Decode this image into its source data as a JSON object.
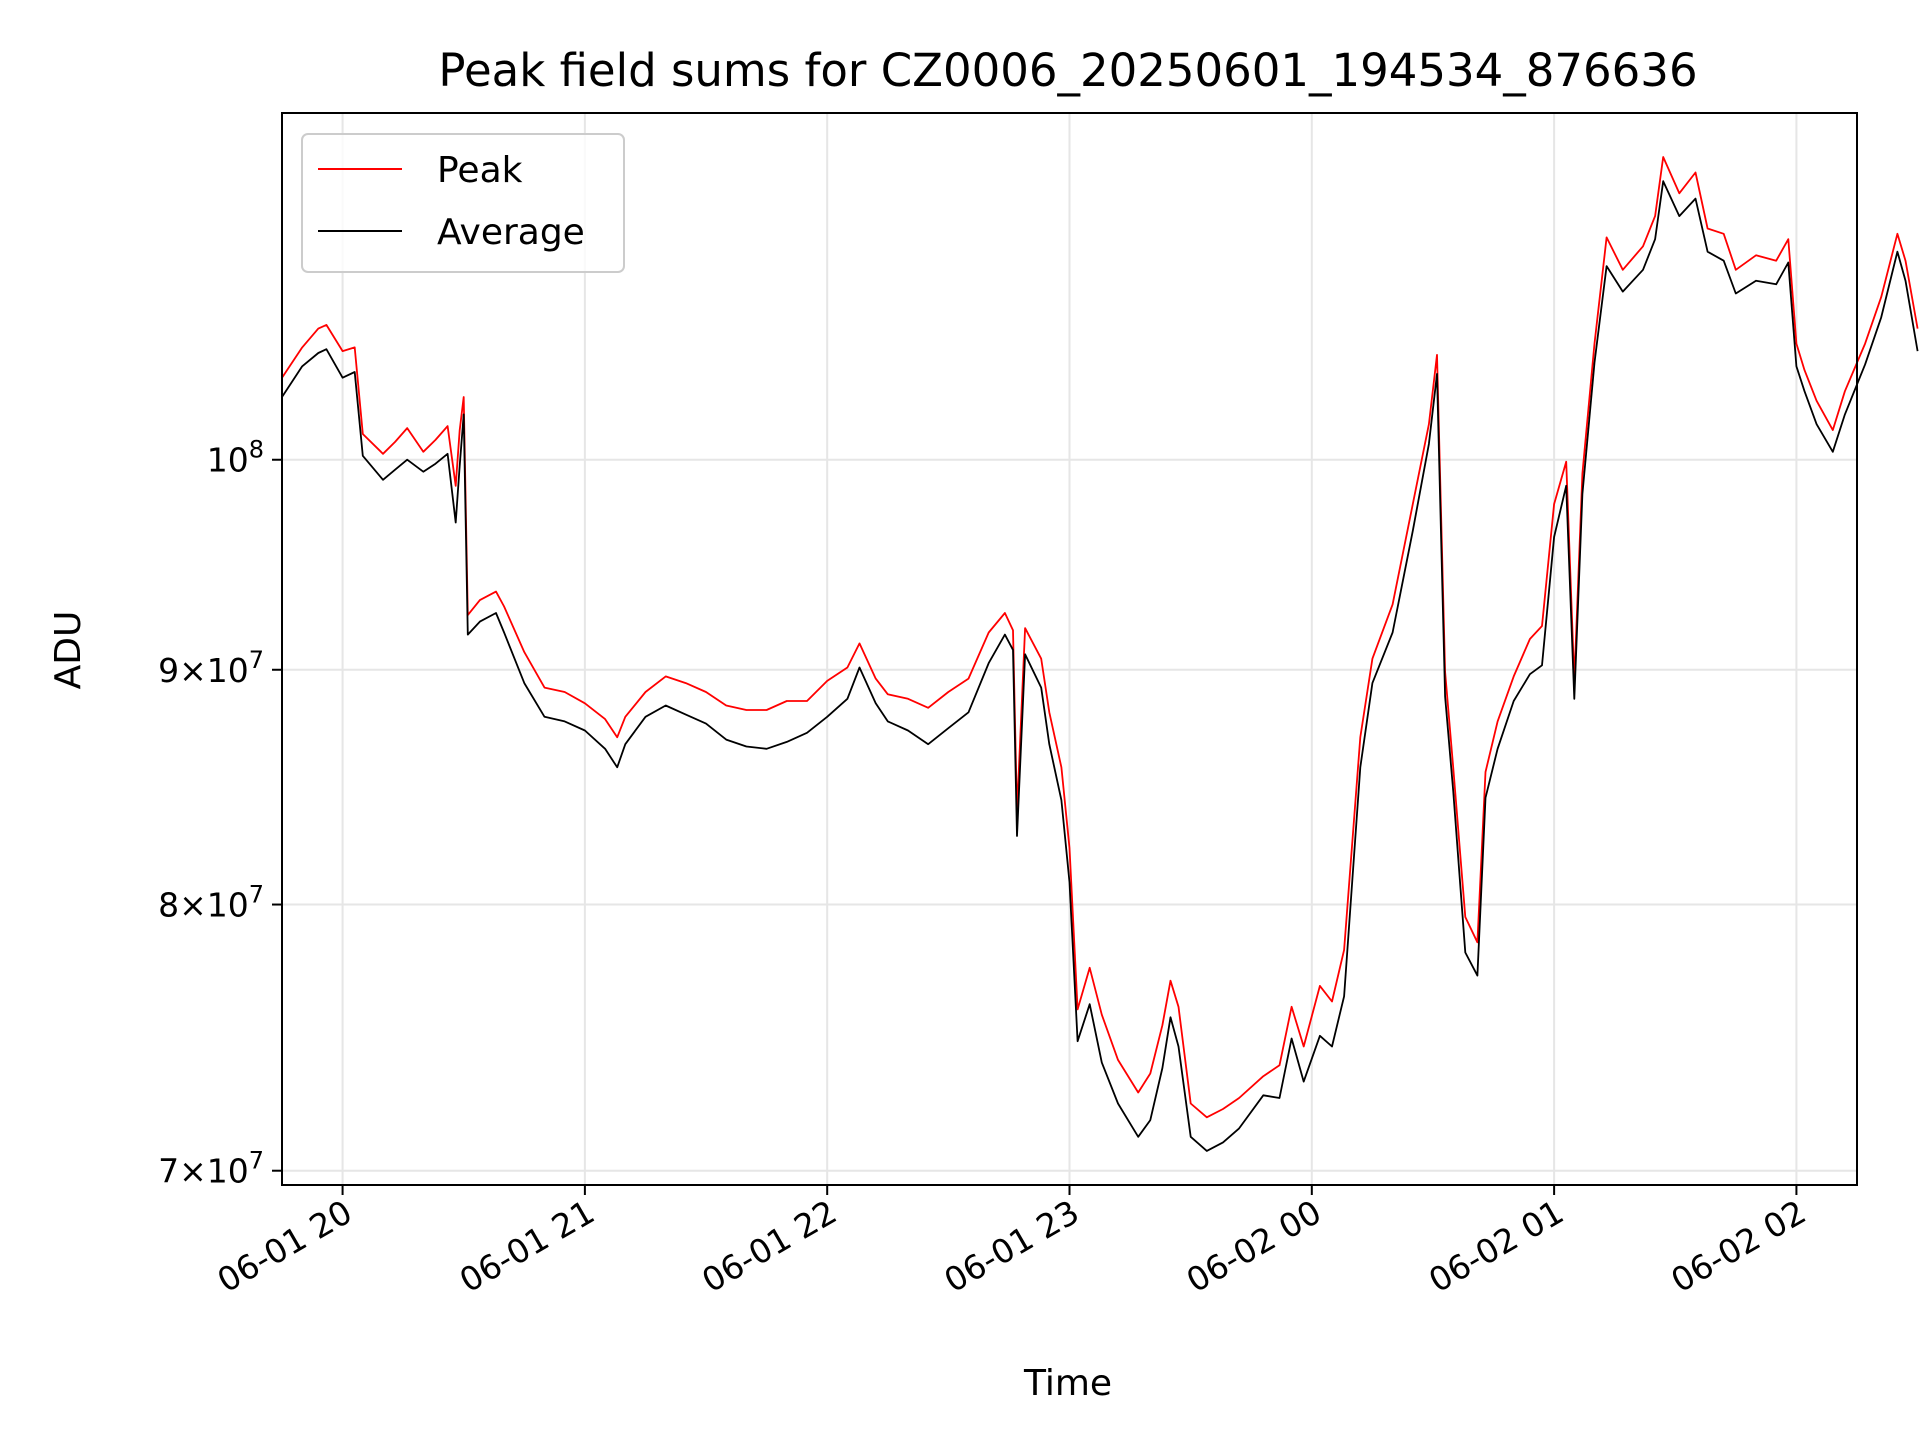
{
  "chart_data": {
    "type": "line",
    "title": "Peak field sums for CZ0006_20250601_194534_876636",
    "xlabel": "Time",
    "ylabel": "ADU",
    "x_ticks": [
      "06-01 20",
      "06-01 21",
      "06-01 22",
      "06-01 23",
      "06-02 00",
      "06-02 01",
      "06-02 02"
    ],
    "y_ticks": [
      {
        "value": 70000000,
        "base": "7",
        "mult": "×",
        "pow": "10",
        "exp": "7"
      },
      {
        "value": 80000000,
        "base": "8",
        "mult": "×",
        "pow": "10",
        "exp": "7"
      },
      {
        "value": 90000000,
        "base": "9",
        "mult": "×",
        "pow": "10",
        "exp": "7"
      },
      {
        "value": 100000000,
        "base": "",
        "mult": "",
        "pow": "10",
        "exp": "8"
      }
    ],
    "x_range": [
      "2025-06-01 19:45",
      "2025-06-02 02:15"
    ],
    "ylim": [
      69500000,
      119000000
    ],
    "y_scale": "log",
    "grid": true,
    "legend": "top-left",
    "series": [
      {
        "name": "Peak",
        "color": "#ff0000",
        "points": [
          [
            "2025-06-01 19:45",
            104200000
          ],
          [
            "2025-06-01 19:50",
            105800000
          ],
          [
            "2025-06-01 19:54",
            106800000
          ],
          [
            "2025-06-01 19:56",
            107000000
          ],
          [
            "2025-06-01 20:00",
            105600000
          ],
          [
            "2025-06-01 20:03",
            105800000
          ],
          [
            "2025-06-01 20:05",
            101300000
          ],
          [
            "2025-06-01 20:10",
            100300000
          ],
          [
            "2025-06-01 20:13",
            100900000
          ],
          [
            "2025-06-01 20:16",
            101600000
          ],
          [
            "2025-06-01 20:20",
            100400000
          ],
          [
            "2025-06-01 20:23",
            101000000
          ],
          [
            "2025-06-01 20:26",
            101700000
          ],
          [
            "2025-06-01 20:28",
            98700000
          ],
          [
            "2025-06-01 20:29",
            101500000
          ],
          [
            "2025-06-01 20:30",
            103200000
          ],
          [
            "2025-06-01 20:31",
            92500000
          ],
          [
            "2025-06-01 20:34",
            93200000
          ],
          [
            "2025-06-01 20:38",
            93600000
          ],
          [
            "2025-06-01 20:40",
            92900000
          ],
          [
            "2025-06-01 20:45",
            90800000
          ],
          [
            "2025-06-01 20:50",
            89200000
          ],
          [
            "2025-06-01 20:55",
            89000000
          ],
          [
            "2025-06-01 21:00",
            88500000
          ],
          [
            "2025-06-01 21:05",
            87800000
          ],
          [
            "2025-06-01 21:08",
            87000000
          ],
          [
            "2025-06-01 21:10",
            87900000
          ],
          [
            "2025-06-01 21:15",
            89000000
          ],
          [
            "2025-06-01 21:20",
            89700000
          ],
          [
            "2025-06-01 21:25",
            89400000
          ],
          [
            "2025-06-01 21:30",
            89000000
          ],
          [
            "2025-06-01 21:35",
            88400000
          ],
          [
            "2025-06-01 21:40",
            88200000
          ],
          [
            "2025-06-01 21:45",
            88200000
          ],
          [
            "2025-06-01 21:50",
            88600000
          ],
          [
            "2025-06-01 21:55",
            88600000
          ],
          [
            "2025-06-01 22:00",
            89500000
          ],
          [
            "2025-06-01 22:05",
            90100000
          ],
          [
            "2025-06-01 22:08",
            91200000
          ],
          [
            "2025-06-01 22:12",
            89600000
          ],
          [
            "2025-06-01 22:15",
            88900000
          ],
          [
            "2025-06-01 22:20",
            88700000
          ],
          [
            "2025-06-01 22:25",
            88300000
          ],
          [
            "2025-06-01 22:30",
            89000000
          ],
          [
            "2025-06-01 22:35",
            89600000
          ],
          [
            "2025-06-01 22:40",
            91700000
          ],
          [
            "2025-06-01 22:44",
            92600000
          ],
          [
            "2025-06-01 22:46",
            91800000
          ],
          [
            "2025-06-01 22:47",
            83800000
          ],
          [
            "2025-06-01 22:49",
            91900000
          ],
          [
            "2025-06-01 22:53",
            90500000
          ],
          [
            "2025-06-01 22:55",
            88100000
          ],
          [
            "2025-06-01 22:58",
            85700000
          ],
          [
            "2025-06-01 23:00",
            82300000
          ],
          [
            "2025-06-01 23:02",
            75900000
          ],
          [
            "2025-06-01 23:05",
            77500000
          ],
          [
            "2025-06-01 23:08",
            75700000
          ],
          [
            "2025-06-01 23:12",
            74000000
          ],
          [
            "2025-06-01 23:17",
            72800000
          ],
          [
            "2025-06-01 23:20",
            73500000
          ],
          [
            "2025-06-01 23:23",
            75300000
          ],
          [
            "2025-06-01 23:25",
            77000000
          ],
          [
            "2025-06-01 23:27",
            76000000
          ],
          [
            "2025-06-01 23:30",
            72400000
          ],
          [
            "2025-06-01 23:34",
            71900000
          ],
          [
            "2025-06-01 23:38",
            72200000
          ],
          [
            "2025-06-01 23:42",
            72600000
          ],
          [
            "2025-06-01 23:48",
            73400000
          ],
          [
            "2025-06-01 23:52",
            73800000
          ],
          [
            "2025-06-01 23:55",
            76000000
          ],
          [
            "2025-06-01 23:58",
            74500000
          ],
          [
            "2025-06-02 00:02",
            76800000
          ],
          [
            "2025-06-02 00:05",
            76200000
          ],
          [
            "2025-06-02 00:08",
            78200000
          ],
          [
            "2025-06-02 00:12",
            87000000
          ],
          [
            "2025-06-02 00:15",
            90500000
          ],
          [
            "2025-06-02 00:20",
            93000000
          ],
          [
            "2025-06-02 00:25",
            97800000
          ],
          [
            "2025-06-02 00:29",
            101800000
          ],
          [
            "2025-06-02 00:31",
            105400000
          ],
          [
            "2025-06-02 00:33",
            89900000
          ],
          [
            "2025-06-02 00:35",
            85700000
          ],
          [
            "2025-06-02 00:38",
            79500000
          ],
          [
            "2025-06-02 00:41",
            78500000
          ],
          [
            "2025-06-02 00:43",
            85500000
          ],
          [
            "2025-06-02 00:46",
            87700000
          ],
          [
            "2025-06-02 00:50",
            89700000
          ],
          [
            "2025-06-02 00:54",
            91400000
          ],
          [
            "2025-06-02 00:57",
            92000000
          ],
          [
            "2025-06-02 01:00",
            97800000
          ],
          [
            "2025-06-02 01:03",
            99900000
          ],
          [
            "2025-06-02 01:05",
            89500000
          ],
          [
            "2025-06-02 01:07",
            99300000
          ],
          [
            "2025-06-02 01:10",
            106000000
          ],
          [
            "2025-06-02 01:13",
            111800000
          ],
          [
            "2025-06-02 01:17",
            110000000
          ],
          [
            "2025-06-02 01:22",
            111300000
          ],
          [
            "2025-06-02 01:25",
            113000000
          ],
          [
            "2025-06-02 01:27",
            116400000
          ],
          [
            "2025-06-02 01:31",
            114300000
          ],
          [
            "2025-06-02 01:35",
            115500000
          ],
          [
            "2025-06-02 01:38",
            112300000
          ],
          [
            "2025-06-02 01:42",
            112000000
          ],
          [
            "2025-06-02 01:45",
            110000000
          ],
          [
            "2025-06-02 01:50",
            110800000
          ],
          [
            "2025-06-02 01:55",
            110500000
          ],
          [
            "2025-06-02 01:58",
            111700000
          ],
          [
            "2025-06-02 02:00",
            106000000
          ],
          [
            "2025-06-02 02:02",
            104600000
          ],
          [
            "2025-06-02 02:05",
            103000000
          ],
          [
            "2025-06-02 02:09",
            101500000
          ],
          [
            "2025-06-02 02:12",
            103500000
          ],
          [
            "2025-06-02 02:17",
            106000000
          ],
          [
            "2025-06-02 02:21",
            108500000
          ],
          [
            "2025-06-02 02:25",
            112000000
          ],
          [
            "2025-06-02 02:27",
            110500000
          ],
          [
            "2025-06-02 02:30",
            106800000
          ]
        ]
      },
      {
        "name": "Average",
        "color": "#000000",
        "points": [
          [
            "2025-06-01 19:45",
            103200000
          ],
          [
            "2025-06-01 19:50",
            104800000
          ],
          [
            "2025-06-01 19:54",
            105500000
          ],
          [
            "2025-06-01 19:56",
            105700000
          ],
          [
            "2025-06-01 20:00",
            104200000
          ],
          [
            "2025-06-01 20:03",
            104500000
          ],
          [
            "2025-06-01 20:05",
            100200000
          ],
          [
            "2025-06-01 20:10",
            99000000
          ],
          [
            "2025-06-01 20:13",
            99500000
          ],
          [
            "2025-06-01 20:16",
            100000000
          ],
          [
            "2025-06-01 20:20",
            99400000
          ],
          [
            "2025-06-01 20:23",
            99800000
          ],
          [
            "2025-06-01 20:26",
            100300000
          ],
          [
            "2025-06-01 20:28",
            96900000
          ],
          [
            "2025-06-01 20:29",
            99700000
          ],
          [
            "2025-06-01 20:30",
            102300000
          ],
          [
            "2025-06-01 20:31",
            91600000
          ],
          [
            "2025-06-01 20:34",
            92200000
          ],
          [
            "2025-06-01 20:38",
            92600000
          ],
          [
            "2025-06-01 20:40",
            91700000
          ],
          [
            "2025-06-01 20:45",
            89400000
          ],
          [
            "2025-06-01 20:50",
            87900000
          ],
          [
            "2025-06-01 20:55",
            87700000
          ],
          [
            "2025-06-01 21:00",
            87300000
          ],
          [
            "2025-06-01 21:05",
            86500000
          ],
          [
            "2025-06-01 21:08",
            85700000
          ],
          [
            "2025-06-01 21:10",
            86700000
          ],
          [
            "2025-06-01 21:15",
            87900000
          ],
          [
            "2025-06-01 21:20",
            88400000
          ],
          [
            "2025-06-01 21:25",
            88000000
          ],
          [
            "2025-06-01 21:30",
            87600000
          ],
          [
            "2025-06-01 21:35",
            86900000
          ],
          [
            "2025-06-01 21:40",
            86600000
          ],
          [
            "2025-06-01 21:45",
            86500000
          ],
          [
            "2025-06-01 21:50",
            86800000
          ],
          [
            "2025-06-01 21:55",
            87200000
          ],
          [
            "2025-06-01 22:00",
            87900000
          ],
          [
            "2025-06-01 22:05",
            88700000
          ],
          [
            "2025-06-01 22:08",
            90100000
          ],
          [
            "2025-06-01 22:12",
            88500000
          ],
          [
            "2025-06-01 22:15",
            87700000
          ],
          [
            "2025-06-01 22:20",
            87300000
          ],
          [
            "2025-06-01 22:25",
            86700000
          ],
          [
            "2025-06-01 22:30",
            87400000
          ],
          [
            "2025-06-01 22:35",
            88100000
          ],
          [
            "2025-06-01 22:40",
            90300000
          ],
          [
            "2025-06-01 22:44",
            91600000
          ],
          [
            "2025-06-01 22:46",
            90900000
          ],
          [
            "2025-06-01 22:47",
            82800000
          ],
          [
            "2025-06-01 22:49",
            90700000
          ],
          [
            "2025-06-01 22:53",
            89200000
          ],
          [
            "2025-06-01 22:55",
            86700000
          ],
          [
            "2025-06-01 22:58",
            84300000
          ],
          [
            "2025-06-01 23:00",
            80900000
          ],
          [
            "2025-06-01 23:02",
            74700000
          ],
          [
            "2025-06-01 23:05",
            76100000
          ],
          [
            "2025-06-01 23:08",
            73900000
          ],
          [
            "2025-06-01 23:12",
            72400000
          ],
          [
            "2025-06-01 23:17",
            71200000
          ],
          [
            "2025-06-01 23:20",
            71800000
          ],
          [
            "2025-06-01 23:23",
            73700000
          ],
          [
            "2025-06-01 23:25",
            75600000
          ],
          [
            "2025-06-01 23:27",
            74500000
          ],
          [
            "2025-06-01 23:30",
            71200000
          ],
          [
            "2025-06-01 23:34",
            70700000
          ],
          [
            "2025-06-01 23:38",
            71000000
          ],
          [
            "2025-06-01 23:42",
            71500000
          ],
          [
            "2025-06-01 23:48",
            72700000
          ],
          [
            "2025-06-01 23:52",
            72600000
          ],
          [
            "2025-06-01 23:55",
            74800000
          ],
          [
            "2025-06-01 23:58",
            73200000
          ],
          [
            "2025-06-02 00:02",
            74900000
          ],
          [
            "2025-06-02 00:05",
            74500000
          ],
          [
            "2025-06-02 00:08",
            76400000
          ],
          [
            "2025-06-02 00:12",
            85700000
          ],
          [
            "2025-06-02 00:15",
            89400000
          ],
          [
            "2025-06-02 00:20",
            91700000
          ],
          [
            "2025-06-02 00:25",
            96500000
          ],
          [
            "2025-06-02 00:29",
            100800000
          ],
          [
            "2025-06-02 00:31",
            104400000
          ],
          [
            "2025-06-02 00:33",
            88800000
          ],
          [
            "2025-06-02 00:35",
            84700000
          ],
          [
            "2025-06-02 00:38",
            78100000
          ],
          [
            "2025-06-02 00:41",
            77200000
          ],
          [
            "2025-06-02 00:43",
            84400000
          ],
          [
            "2025-06-02 00:46",
            86500000
          ],
          [
            "2025-06-02 00:50",
            88600000
          ],
          [
            "2025-06-02 00:54",
            89800000
          ],
          [
            "2025-06-02 00:57",
            90200000
          ],
          [
            "2025-06-02 01:00",
            96200000
          ],
          [
            "2025-06-02 01:03",
            98700000
          ],
          [
            "2025-06-02 01:05",
            88700000
          ],
          [
            "2025-06-02 01:07",
            98300000
          ],
          [
            "2025-06-02 01:10",
            105000000
          ],
          [
            "2025-06-02 01:13",
            110200000
          ],
          [
            "2025-06-02 01:17",
            108800000
          ],
          [
            "2025-06-02 01:22",
            110000000
          ],
          [
            "2025-06-02 01:25",
            111700000
          ],
          [
            "2025-06-02 01:27",
            115000000
          ],
          [
            "2025-06-02 01:31",
            113000000
          ],
          [
            "2025-06-02 01:35",
            114000000
          ],
          [
            "2025-06-02 01:38",
            111000000
          ],
          [
            "2025-06-02 01:42",
            110500000
          ],
          [
            "2025-06-02 01:45",
            108700000
          ],
          [
            "2025-06-02 01:50",
            109400000
          ],
          [
            "2025-06-02 01:55",
            109200000
          ],
          [
            "2025-06-02 01:58",
            110400000
          ],
          [
            "2025-06-02 02:00",
            104800000
          ],
          [
            "2025-06-02 02:02",
            103500000
          ],
          [
            "2025-06-02 02:05",
            101800000
          ],
          [
            "2025-06-02 02:09",
            100400000
          ],
          [
            "2025-06-02 02:12",
            102300000
          ],
          [
            "2025-06-02 02:17",
            104900000
          ],
          [
            "2025-06-02 02:21",
            107400000
          ],
          [
            "2025-06-02 02:25",
            111000000
          ],
          [
            "2025-06-02 02:27",
            109400000
          ],
          [
            "2025-06-02 02:30",
            105600000
          ]
        ]
      }
    ]
  }
}
